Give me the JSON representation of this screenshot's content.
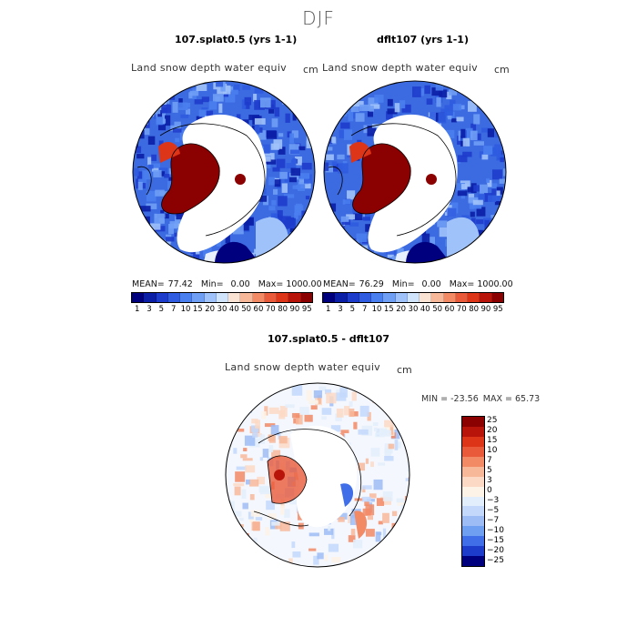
{
  "figure": {
    "season": "DJF"
  },
  "chart_data": [
    {
      "type": "heatmap",
      "title": "107.splat0.5 (yrs 1-1)",
      "variable": "Land snow depth water equiv",
      "units": "cm",
      "projection": "polar stereographic (north)",
      "stats": {
        "mean_label": "MEAN=",
        "mean": "77.42",
        "min_label": "Min=",
        "min": "0.00",
        "max_label": "Max=",
        "max": "1000.00"
      },
      "colorbar": {
        "ticks": [
          "1",
          "3",
          "5",
          "7",
          "10",
          "15",
          "20",
          "30",
          "40",
          "50",
          "60",
          "70",
          "80",
          "90",
          "95"
        ],
        "colors": [
          "#00007f",
          "#0a1ea6",
          "#1e3ccc",
          "#2f5ce0",
          "#4a7ff0",
          "#6f9ff5",
          "#a0c2fa",
          "#d0e4fc",
          "#fbe3d4",
          "#f7b89a",
          "#f28a66",
          "#e85a3a",
          "#dc3518",
          "#b8140a",
          "#8b0000"
        ]
      }
    },
    {
      "type": "heatmap",
      "title": "dflt107 (yrs 1-1)",
      "variable": "Land snow depth water equiv",
      "units": "cm",
      "projection": "polar stereographic (north)",
      "stats": {
        "mean_label": "MEAN=",
        "mean": "76.29",
        "min_label": "Min=",
        "min": "0.00",
        "max_label": "Max=",
        "max": "1000.00"
      },
      "colorbar": {
        "ticks": [
          "1",
          "3",
          "5",
          "7",
          "10",
          "15",
          "20",
          "30",
          "40",
          "50",
          "60",
          "70",
          "80",
          "90",
          "95"
        ],
        "colors": [
          "#00007f",
          "#0a1ea6",
          "#1e3ccc",
          "#2f5ce0",
          "#4a7ff0",
          "#6f9ff5",
          "#a0c2fa",
          "#d0e4fc",
          "#fbe3d4",
          "#f7b89a",
          "#f28a66",
          "#e85a3a",
          "#dc3518",
          "#b8140a",
          "#8b0000"
        ]
      }
    },
    {
      "type": "heatmap",
      "title": "107.splat0.5 - dflt107",
      "variable": "Land snow depth water equiv",
      "units": "cm",
      "projection": "polar stereographic (north)",
      "stats": {
        "min_label": "MIN =",
        "min": "-23.56",
        "max_label": "MAX =",
        "max": "65.73"
      },
      "colorbar": {
        "ticks": [
          "25",
          "20",
          "15",
          "10",
          "7",
          "5",
          "3",
          "0",
          "−3",
          "−5",
          "−7",
          "−10",
          "−15",
          "−20",
          "−25"
        ],
        "colors": [
          "#8b0000",
          "#b8140a",
          "#dc3518",
          "#e85a3a",
          "#f28a66",
          "#f7b89a",
          "#fbd9c4",
          "#fdf3e6",
          "#e3eefc",
          "#c3d8fb",
          "#9dbcf6",
          "#6f9ff0",
          "#3f6ee8",
          "#1e3ccc",
          "#00007f"
        ]
      }
    }
  ]
}
